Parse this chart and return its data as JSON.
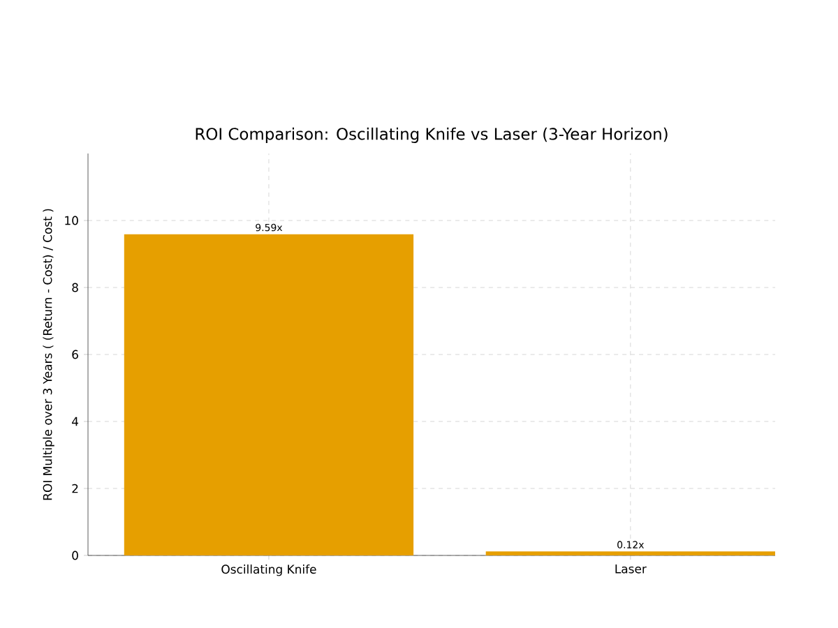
{
  "chart_data": {
    "type": "bar",
    "title": "ROI Comparison: Oscillating Knife vs Laser (3-Year Horizon)",
    "ylabel": "ROI Multiple over 3 Years ( (Return - Cost) / Cost )",
    "categories": [
      "Oscillating Knife",
      "Laser"
    ],
    "values": [
      9.59,
      0.12
    ],
    "value_labels": [
      "9.59x",
      "0.12x"
    ],
    "color": "#e69f00",
    "ylim": [
      0,
      12
    ],
    "yticks": [
      0,
      2,
      4,
      6,
      8,
      10
    ],
    "grid": true
  }
}
